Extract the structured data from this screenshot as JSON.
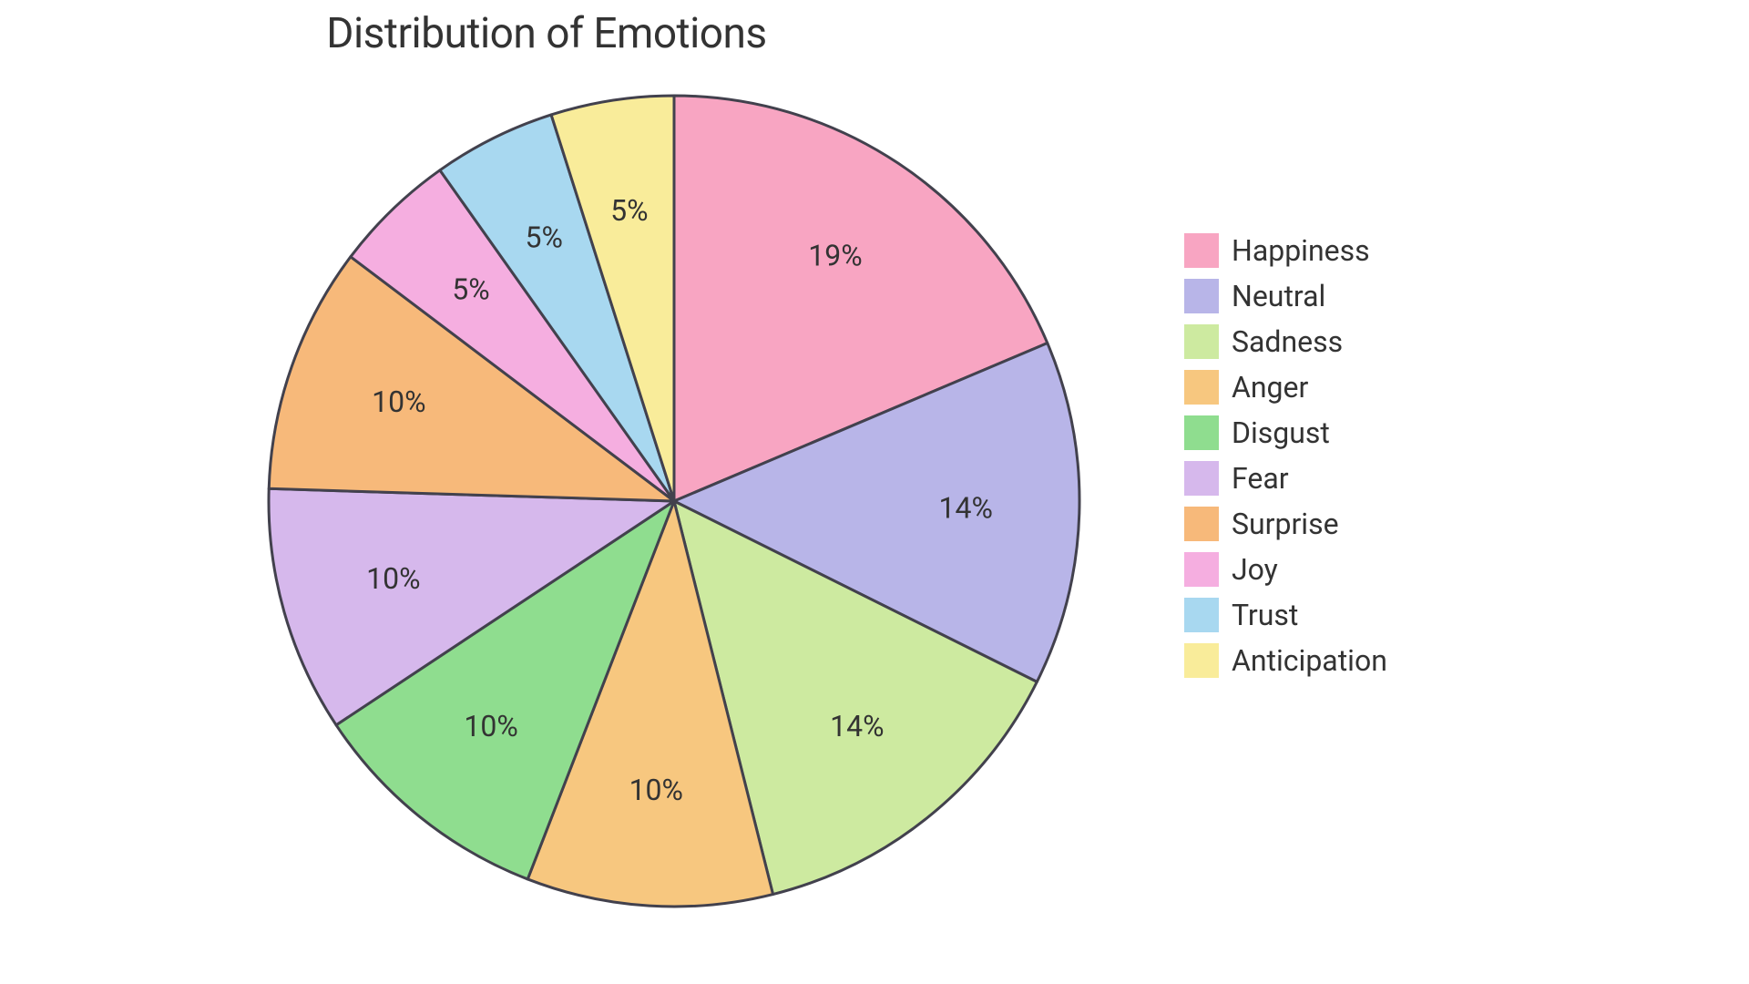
{
  "chart": {
    "type": "pie",
    "title": "Distribution of Emotions",
    "title_fontsize": 46,
    "title_color": "#333333",
    "background_color": "#ffffff",
    "stroke_color": "#42414d",
    "stroke_width": 3,
    "label_fontsize": 32,
    "label_color": "#333333",
    "legend_fontsize": 32,
    "legend_color": "#333333",
    "radius": 445,
    "label_radius_factor": 0.72,
    "slices": [
      {
        "name": "Happiness",
        "value": 19,
        "label": "19%",
        "color": "#f8a5c2"
      },
      {
        "name": "Neutral",
        "value": 14,
        "label": "14%",
        "color": "#b8b5e8"
      },
      {
        "name": "Sadness",
        "value": 14,
        "label": "14%",
        "color": "#cdeaa0"
      },
      {
        "name": "Anger",
        "value": 10,
        "label": "10%",
        "color": "#f7c77f"
      },
      {
        "name": "Disgust",
        "value": 10,
        "label": "10%",
        "color": "#8fdd8f"
      },
      {
        "name": "Fear",
        "value": 10,
        "label": "10%",
        "color": "#d6b8ec"
      },
      {
        "name": "Surprise",
        "value": 10,
        "label": "10%",
        "color": "#f7b97a"
      },
      {
        "name": "Joy",
        "value": 5,
        "label": "5%",
        "color": "#f5aee0"
      },
      {
        "name": "Trust",
        "value": 5,
        "label": "5%",
        "color": "#a8d8f0"
      },
      {
        "name": "Anticipation",
        "value": 5,
        "label": "5%",
        "color": "#f9ec9a"
      }
    ]
  }
}
